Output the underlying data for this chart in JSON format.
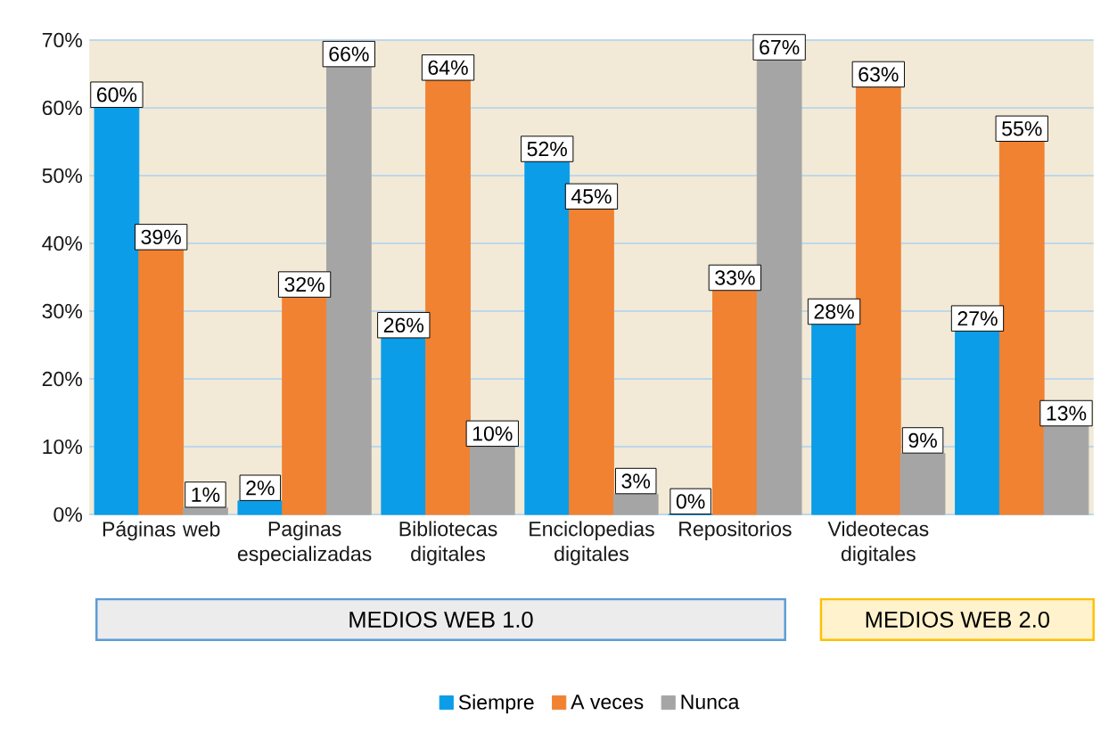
{
  "chart_data": {
    "type": "bar",
    "categories": [
      "Páginas web",
      "Paginas especializadas",
      "Bibliotecas digitales",
      "Enciclopedias digitales",
      "Repositorios",
      "Videotecas digitales",
      null
    ],
    "series": [
      {
        "name": "Siempre",
        "color": "#0b9de8",
        "values": [
          60,
          2,
          26,
          52,
          0,
          28,
          27
        ],
        "value_labels": [
          "60%",
          "2%",
          "26%",
          "52%",
          "0%",
          "28%",
          "27%"
        ]
      },
      {
        "name": "A veces",
        "color": "#f08232",
        "values": [
          39,
          32,
          64,
          45,
          33,
          63,
          55
        ],
        "value_labels": [
          "39%",
          "32%",
          "64%",
          "45%",
          "33%",
          "63%",
          "55%"
        ]
      },
      {
        "name": "Nunca",
        "color": "#a5a5a5",
        "values": [
          1,
          66,
          10,
          3,
          67,
          9,
          13
        ],
        "value_labels": [
          "1%",
          "66%",
          "10%",
          "3%",
          "67%",
          "9%",
          "13%"
        ]
      }
    ],
    "ylim": [
      0,
      70
    ],
    "yticks": [
      {
        "value": 0,
        "label": "0%"
      },
      {
        "value": 10,
        "label": "10%"
      },
      {
        "value": 20,
        "label": "20%"
      },
      {
        "value": 30,
        "label": "30%"
      },
      {
        "value": 40,
        "label": "40%"
      },
      {
        "value": 50,
        "label": "50%"
      },
      {
        "value": 60,
        "label": "60%"
      },
      {
        "value": 70,
        "label": "70%"
      }
    ],
    "grid": "y",
    "legend": "bottom",
    "annotations": [
      "MEDIOS WEB 1.0",
      "MEDIOS WEB 2.0"
    ]
  }
}
